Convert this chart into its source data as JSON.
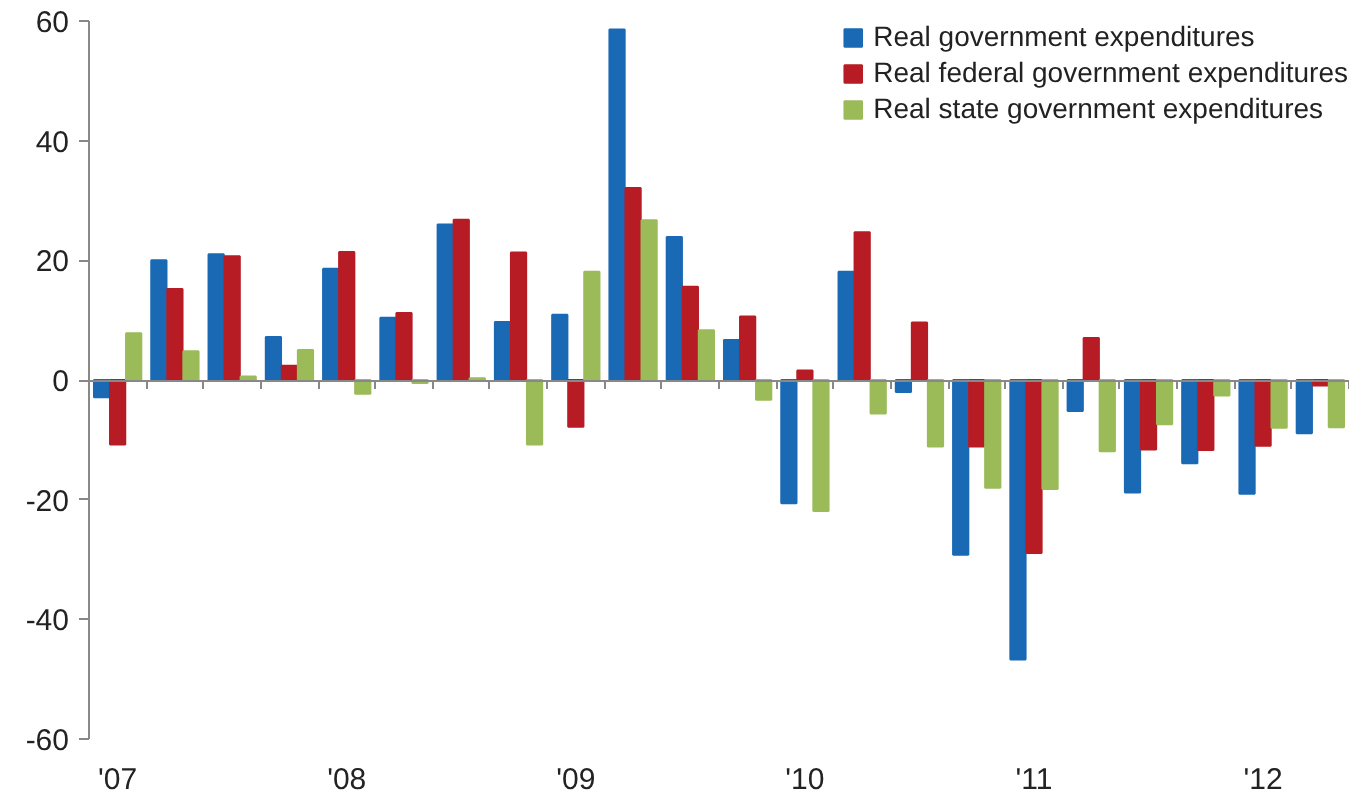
{
  "chart_data": {
    "type": "bar",
    "categories": [
      "'07",
      null,
      null,
      null,
      "'08",
      null,
      null,
      null,
      "'09",
      null,
      null,
      null,
      "'10",
      null,
      null,
      null,
      "'11",
      null,
      null,
      null,
      "'12",
      null
    ],
    "series": [
      {
        "name": "Real government expenditures",
        "color": "#1a69b5",
        "values": [
          -2.9,
          20,
          21,
          7.2,
          18.6,
          10.4,
          26,
          9.7,
          10.9,
          58.6,
          23.9,
          6.7,
          -20.6,
          18.1,
          -2,
          -29.2,
          -46.7,
          -5.2,
          -18.8,
          -13.9,
          -19,
          -8.9
        ]
      },
      {
        "name": "Real federal government expenditures",
        "color": "#b71c25",
        "values": [
          -10.8,
          15.2,
          20.7,
          2.4,
          21.4,
          11.2,
          26.8,
          21.3,
          -7.8,
          32.1,
          15.6,
          10.6,
          1.6,
          24.7,
          9.6,
          -11.1,
          -28.9,
          7,
          -11.6,
          -11.7,
          -11,
          -0.9
        ]
      },
      {
        "name": "Real state government expenditures",
        "color": "#9bbb59",
        "values": [
          7.8,
          4.8,
          0.6,
          5,
          -2.3,
          -0.5,
          0.3,
          -10.8,
          18.1,
          26.7,
          8.3,
          -3.3,
          -21.9,
          -5.6,
          -11.1,
          -18,
          -18.2,
          -11.9,
          -7.4,
          -2.6,
          -8,
          -7.9
        ]
      }
    ],
    "ylim": [
      -60,
      60
    ],
    "yticks": [
      -60,
      -40,
      -20,
      0,
      20,
      40,
      60
    ],
    "legend": "top right"
  }
}
